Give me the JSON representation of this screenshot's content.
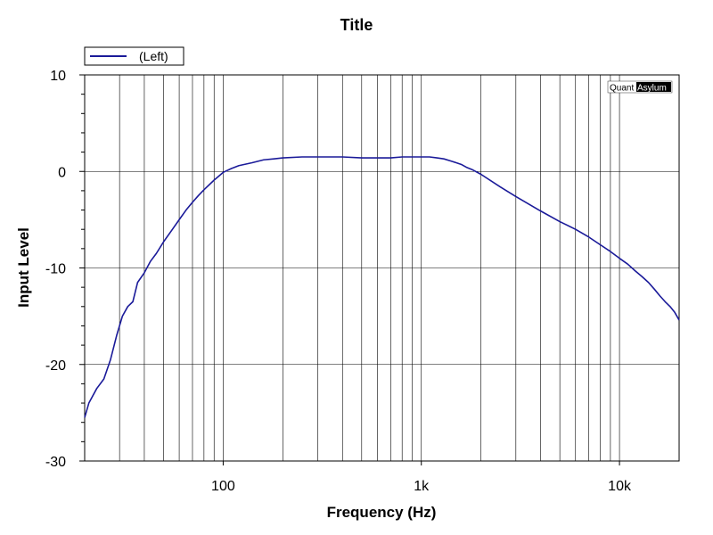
{
  "chart_data": {
    "type": "line",
    "title": "Title",
    "xlabel": "Frequency (Hz)",
    "ylabel": "Input Level",
    "x_scale": "log",
    "xlim": [
      20,
      20000
    ],
    "ylim": [
      -30,
      10
    ],
    "x_ticks": [
      {
        "value": 100,
        "label": "100"
      },
      {
        "value": 1000,
        "label": "1k"
      },
      {
        "value": 10000,
        "label": "10k"
      }
    ],
    "y_ticks": [
      {
        "value": 10,
        "label": "10"
      },
      {
        "value": 0,
        "label": "0"
      },
      {
        "value": -10,
        "label": "-10"
      },
      {
        "value": -20,
        "label": "-20"
      },
      {
        "value": -30,
        "label": "-30"
      }
    ],
    "grid": true,
    "legend_position": "top-left",
    "series": [
      {
        "name": "(Left)",
        "color": "#1a1a99",
        "points": [
          [
            20,
            -25.5
          ],
          [
            21,
            -24.0
          ],
          [
            23,
            -22.5
          ],
          [
            25,
            -21.5
          ],
          [
            27,
            -19.5
          ],
          [
            29,
            -17.0
          ],
          [
            31,
            -15.0
          ],
          [
            33,
            -14.0
          ],
          [
            35,
            -13.5
          ],
          [
            37,
            -11.5
          ],
          [
            40,
            -10.5
          ],
          [
            43,
            -9.3
          ],
          [
            46,
            -8.5
          ],
          [
            50,
            -7.3
          ],
          [
            55,
            -6.1
          ],
          [
            60,
            -5.0
          ],
          [
            65,
            -4.0
          ],
          [
            70,
            -3.2
          ],
          [
            75,
            -2.5
          ],
          [
            80,
            -1.9
          ],
          [
            90,
            -0.9
          ],
          [
            100,
            -0.1
          ],
          [
            110,
            0.3
          ],
          [
            120,
            0.6
          ],
          [
            140,
            0.9
          ],
          [
            160,
            1.2
          ],
          [
            180,
            1.3
          ],
          [
            200,
            1.4
          ],
          [
            250,
            1.5
          ],
          [
            300,
            1.5
          ],
          [
            400,
            1.5
          ],
          [
            500,
            1.4
          ],
          [
            600,
            1.4
          ],
          [
            700,
            1.4
          ],
          [
            800,
            1.5
          ],
          [
            900,
            1.5
          ],
          [
            1000,
            1.5
          ],
          [
            1100,
            1.5
          ],
          [
            1200,
            1.4
          ],
          [
            1300,
            1.3
          ],
          [
            1400,
            1.1
          ],
          [
            1500,
            0.9
          ],
          [
            1600,
            0.7
          ],
          [
            1700,
            0.4
          ],
          [
            1800,
            0.2
          ],
          [
            2000,
            -0.3
          ],
          [
            2500,
            -1.6
          ],
          [
            3000,
            -2.6
          ],
          [
            4000,
            -4.1
          ],
          [
            5000,
            -5.2
          ],
          [
            6000,
            -6.0
          ],
          [
            7000,
            -6.8
          ],
          [
            8000,
            -7.6
          ],
          [
            9000,
            -8.3
          ],
          [
            10000,
            -9.0
          ],
          [
            11000,
            -9.6
          ],
          [
            12000,
            -10.3
          ],
          [
            13000,
            -10.9
          ],
          [
            14000,
            -11.5
          ],
          [
            15000,
            -12.2
          ],
          [
            16000,
            -12.9
          ],
          [
            17000,
            -13.5
          ],
          [
            18000,
            -14.0
          ],
          [
            19000,
            -14.6
          ],
          [
            20000,
            -15.4
          ]
        ]
      }
    ]
  },
  "watermark": {
    "part1": "Quant",
    "part2": "Asylum"
  }
}
